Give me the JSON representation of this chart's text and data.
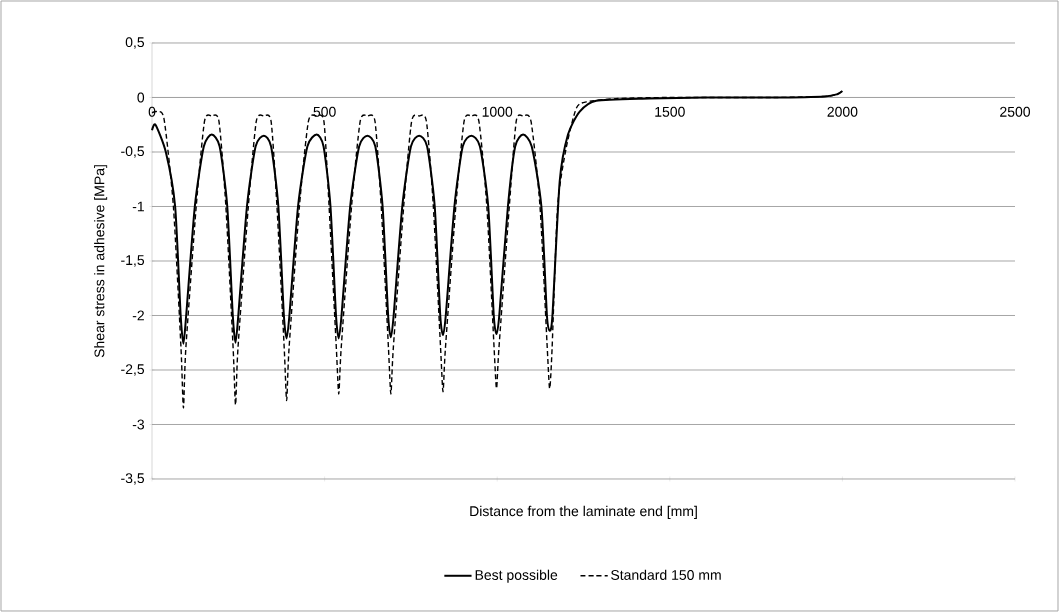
{
  "chart_data": {
    "type": "line",
    "xlabel": "Distance from the laminate end [mm]",
    "ylabel": "Shear stress in adhesive  [MPa]",
    "xlim": [
      0,
      2500
    ],
    "xticks": [
      0,
      500,
      1000,
      1500,
      2000,
      2500
    ],
    "ylim": [
      -3.5,
      0.5
    ],
    "yticks": [
      {
        "value": 0.5,
        "label": "0,5"
      },
      0,
      {
        "value": -0.5,
        "label": "-0,5"
      },
      -1,
      {
        "value": -1.5,
        "label": "-1,5"
      },
      -2,
      {
        "value": -2.5,
        "label": "-2,5"
      },
      -3,
      {
        "value": -3.5,
        "label": "-3,5"
      }
    ],
    "grid": "y",
    "legend": "bottom",
    "marker": "none",
    "series": [
      {
        "name": "Best possible",
        "color": "#000000",
        "line_style": "solid",
        "x": [
          0,
          10,
          40,
          67,
          83,
          91,
          99,
          124,
          150,
          173,
          196,
          218,
          234,
          242,
          250,
          275,
          300,
          324,
          345,
          366,
          382,
          390,
          398,
          423,
          450,
          477,
          497,
          517,
          533,
          541,
          549,
          574,
          600,
          624,
          647,
          668,
          684,
          692,
          700,
          725,
          750,
          774,
          797,
          819,
          835,
          843,
          851,
          876,
          900,
          925,
          950,
          974,
          990,
          998,
          1006,
          1031,
          1052,
          1075,
          1100,
          1128,
          1144,
          1152,
          1160,
          1181,
          1205,
          1239,
          1287,
          1440,
          1600,
          1800,
          1950,
          1985,
          2000
        ],
        "values": [
          -0.3,
          -0.25,
          -0.5,
          -1,
          -2,
          -2.26,
          -2,
          -1,
          -0.45,
          -0.34,
          -0.45,
          -1,
          -2,
          -2.25,
          -2,
          -1,
          -0.45,
          -0.35,
          -0.45,
          -1,
          -2,
          -2.21,
          -2,
          -1,
          -0.45,
          -0.34,
          -0.45,
          -1,
          -2,
          -2.21,
          -2,
          -1,
          -0.45,
          -0.35,
          -0.45,
          -1,
          -2,
          -2.2,
          -2,
          -1,
          -0.45,
          -0.35,
          -0.45,
          -1,
          -2,
          -2.18,
          -2,
          -1,
          -0.45,
          -0.35,
          -0.45,
          -1,
          -2,
          -2.17,
          -2,
          -1,
          -0.45,
          -0.34,
          -0.45,
          -1,
          -2,
          -2.14,
          -2,
          -0.77,
          -0.34,
          -0.13,
          -0.03,
          -0.01,
          0,
          0,
          0.01,
          0.03,
          0.06
        ]
      },
      {
        "name": "Standard 150 mm",
        "color": "#000000",
        "line_style": "dashed",
        "x": [
          0,
          15,
          35,
          62,
          84,
          91,
          98,
          128,
          152,
          173,
          194,
          214,
          235,
          242,
          249,
          279,
          302,
          324,
          345,
          362,
          383,
          390,
          397,
          427,
          453,
          477,
          498,
          513,
          534,
          541,
          548,
          578,
          603,
          624,
          646,
          664,
          685,
          692,
          699,
          729,
          752,
          774,
          795,
          815,
          836,
          843,
          850,
          880,
          904,
          925,
          947,
          970,
          991,
          998,
          1005,
          1035,
          1055,
          1075,
          1098,
          1124,
          1145,
          1152,
          1159,
          1175,
          1200,
          1229,
          1258,
          1350,
          1500,
          1800,
          1950,
          1985,
          2000
        ],
        "values": [
          -0.14,
          -0.13,
          -0.2,
          -1,
          -2.3,
          -2.85,
          -2.3,
          -1,
          -0.22,
          -0.17,
          -0.22,
          -1,
          -2.3,
          -2.82,
          -2.3,
          -1,
          -0.22,
          -0.17,
          -0.22,
          -1,
          -2.3,
          -2.78,
          -2.3,
          -1,
          -0.22,
          -0.17,
          -0.22,
          -1,
          -2.3,
          -2.72,
          -2.3,
          -1,
          -0.22,
          -0.17,
          -0.22,
          -1,
          -2.3,
          -2.72,
          -2.3,
          -1,
          -0.22,
          -0.17,
          -0.22,
          -1,
          -2.3,
          -2.7,
          -2.3,
          -1,
          -0.22,
          -0.17,
          -0.22,
          -1,
          -2.3,
          -2.67,
          -2.3,
          -1,
          -0.22,
          -0.17,
          -0.22,
          -1,
          -2.3,
          -2.67,
          -2.3,
          -1,
          -0.46,
          -0.1,
          -0.04,
          -0.01,
          0,
          0,
          0.01,
          0.03,
          0.06
        ]
      }
    ]
  }
}
